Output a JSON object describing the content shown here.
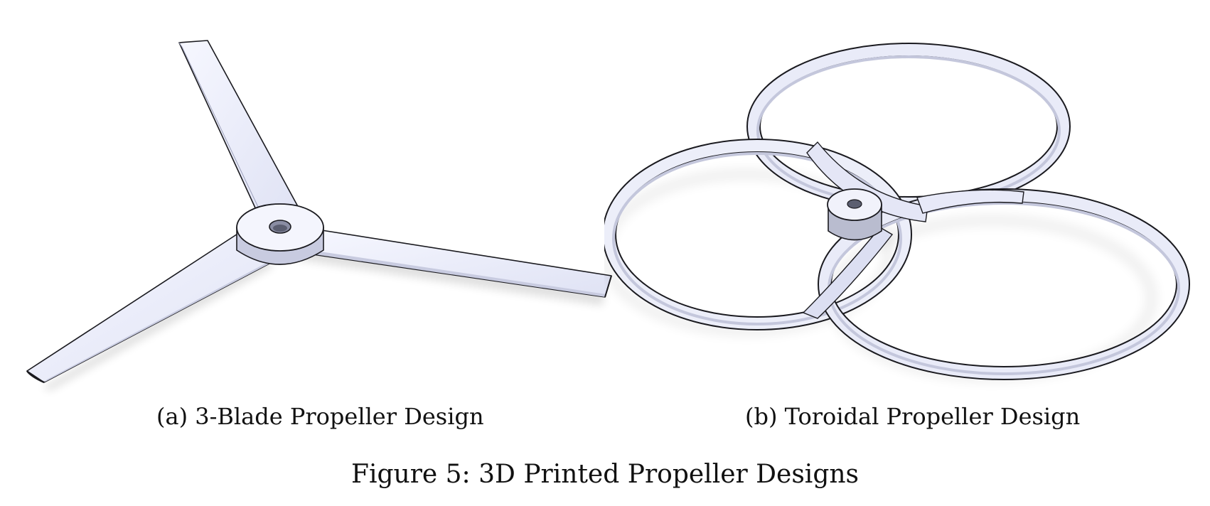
{
  "subfigures": [
    {
      "caption": "(a) 3-Blade Propeller Design",
      "image": "3-blade-propeller-render"
    },
    {
      "caption": "(b) Toroidal Propeller Design",
      "image": "toroidal-propeller-render"
    }
  ],
  "figure_caption": "Figure 5: 3D Printed Propeller Designs",
  "colors": {
    "part_fill": "#eef0fb",
    "part_shade": "#c8cbe0",
    "edge": "#1a1a1f",
    "hub_side": "#b9bccf"
  }
}
